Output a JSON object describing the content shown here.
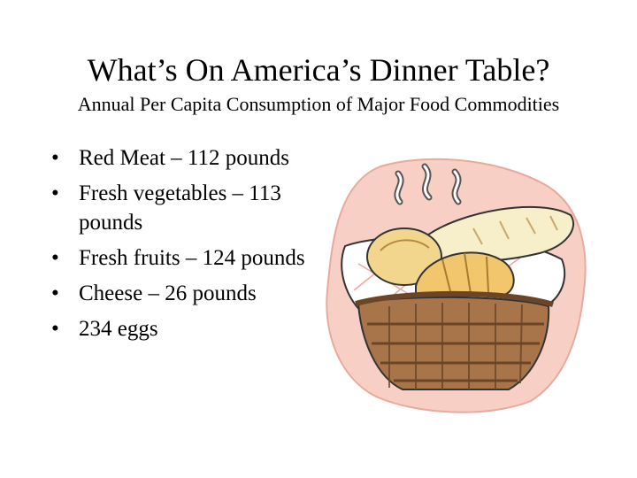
{
  "slide": {
    "title": "What’s On America’s Dinner Table?",
    "subtitle": "Annual Per Capita Consumption of Major Food Commodities",
    "bullets": [
      "Red Meat – 112 pounds",
      "Fresh vegetables – 113 pounds",
      "Fresh fruits – 124 pounds",
      "Cheese – 26 pounds",
      "234 eggs"
    ],
    "bullet_glyph": "•"
  },
  "colors": {
    "background": "#ffffff",
    "text": "#000000",
    "clipart_backdrop": "#f7cfc4",
    "basket": "#a8744a",
    "bread": "#f2d68e"
  },
  "image": {
    "icon": "bread-basket-icon"
  }
}
